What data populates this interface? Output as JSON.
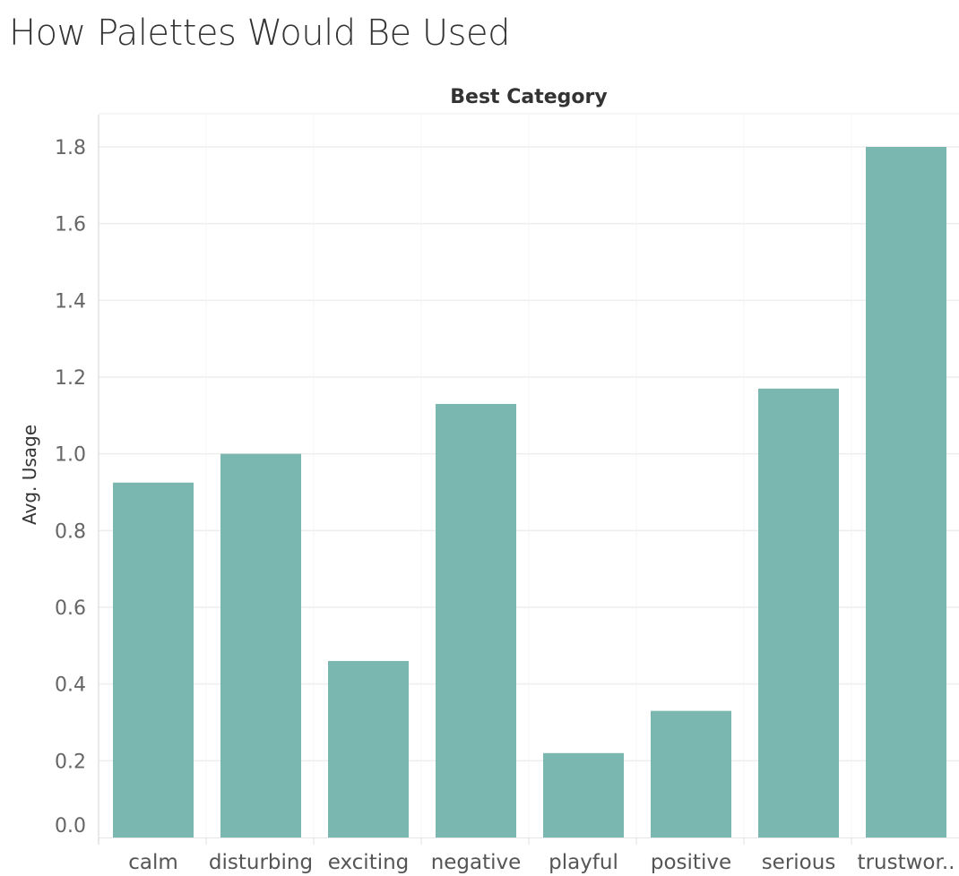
{
  "page": {
    "title": "How Palettes Would Be Used"
  },
  "chart_data": {
    "type": "bar",
    "header": "Best Category",
    "xlabel": "",
    "ylabel": "Avg. Usage",
    "categories": [
      "calm",
      "disturbing",
      "exciting",
      "negative",
      "playful",
      "positive",
      "serious",
      "trustwor.."
    ],
    "values": [
      0.925,
      1.0,
      0.46,
      1.13,
      0.22,
      0.33,
      1.17,
      1.8
    ],
    "ylim": [
      0,
      1.8
    ],
    "yticks": [
      0.0,
      0.2,
      0.4,
      0.6,
      0.8,
      1.0,
      1.2,
      1.4,
      1.6,
      1.8
    ],
    "ytick_labels": [
      "0.0",
      "0.2",
      "0.4",
      "0.6",
      "0.8",
      "1.0",
      "1.2",
      "1.4",
      "1.6",
      "1.8"
    ],
    "grid": true,
    "bar_color": "#79b7b0"
  }
}
